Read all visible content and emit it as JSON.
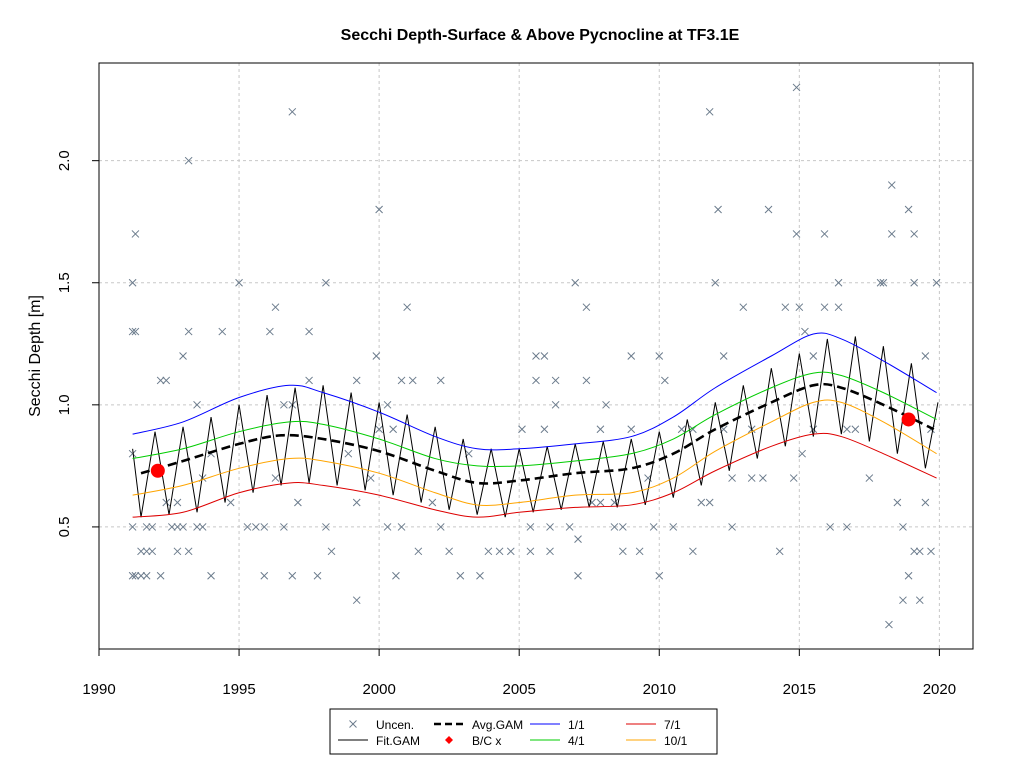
{
  "chart_data": {
    "type": "line",
    "title": "Secchi Depth-Surface & Above Pycnocline at TF3.1E",
    "y_label": "Secchi Depth [m]",
    "xlim": [
      1990,
      2021.2
    ],
    "ylim": [
      0,
      2.4
    ],
    "xticks": [
      1990,
      1995,
      2000,
      2005,
      2010,
      2015,
      2020
    ],
    "yticks": [
      0.5,
      {
        "value": 1.0,
        "label": "1.0"
      },
      1.5,
      {
        "value": 2.0,
        "label": "2.0"
      }
    ],
    "grid": true,
    "legend": "bottom",
    "series": [
      {
        "name": "Uncen.",
        "color": "#6b7b8c",
        "style": "x",
        "x": [
          1991.2,
          1991.2,
          1991.2,
          1991.2,
          1991.2,
          1991.3,
          1991.3,
          1991.3,
          1991.5,
          1991.5,
          1991.7,
          1991.7,
          1991.7,
          1991.9,
          1991.9,
          1992.2,
          1992.2,
          1992.4,
          1992.4,
          1992.6,
          1992.8,
          1992.8,
          1992.8,
          1993.0,
          1993.0,
          1993.2,
          1993.2,
          1993.2,
          1993.5,
          1993.5,
          1993.7,
          1993.7,
          1994.0,
          1994.0,
          1994.4,
          1994.7,
          1995.0,
          1995.3,
          1995.6,
          1995.9,
          1995.9,
          1996.1,
          1996.3,
          1996.3,
          1996.6,
          1996.6,
          1996.9,
          1996.9,
          1996.9,
          1997.1,
          1997.5,
          1997.5,
          1997.8,
          1998.1,
          1998.1,
          1998.3,
          1998.9,
          1999.2,
          1999.2,
          1999.2,
          1999.7,
          1999.9,
          2000.0,
          2000.0,
          2000.3,
          2000.3,
          2000.5,
          2000.6,
          2000.8,
          2000.8,
          2001.0,
          2001.2,
          2001.4,
          2001.9,
          2002.2,
          2002.2,
          2002.5,
          2002.9,
          2003.2,
          2003.6,
          2003.9,
          2004.3,
          2004.7,
          2005.1,
          2005.4,
          2005.4,
          2005.6,
          2005.6,
          2005.9,
          2005.9,
          2006.1,
          2006.1,
          2006.3,
          2006.3,
          2006.8,
          2007.0,
          2007.1,
          2007.1,
          2007.4,
          2007.4,
          2007.6,
          2007.9,
          2007.9,
          2008.1,
          2008.4,
          2008.4,
          2008.7,
          2008.7,
          2009.0,
          2009.0,
          2009.3,
          2009.6,
          2009.8,
          2010.0,
          2010.0,
          2010.2,
          2010.5,
          2010.8,
          2011.2,
          2011.2,
          2011.5,
          2011.8,
          2011.8,
          2012.0,
          2012.1,
          2012.3,
          2012.3,
          2012.6,
          2012.6,
          2013.0,
          2013.3,
          2013.3,
          2013.7,
          2013.9,
          2014.3,
          2014.5,
          2014.8,
          2014.9,
          2014.9,
          2015.0,
          2015.1,
          2015.2,
          2015.5,
          2015.5,
          2015.9,
          2015.9,
          2016.1,
          2016.4,
          2016.4,
          2016.7,
          2016.7,
          2017.0,
          2017.5,
          2017.9,
          2018.0,
          2018.2,
          2018.3,
          2018.3,
          2018.5,
          2018.7,
          2018.7,
          2018.9,
          2018.9,
          2019.1,
          2019.1,
          2019.1,
          2019.3,
          2019.3,
          2019.5,
          2019.5,
          2019.7,
          2019.7,
          2019.9
        ],
        "values": [
          1.5,
          1.3,
          0.8,
          0.5,
          0.3,
          1.7,
          1.3,
          0.3,
          0.4,
          0.3,
          0.5,
          0.4,
          0.3,
          0.5,
          0.4,
          1.1,
          0.3,
          1.1,
          0.6,
          0.5,
          0.5,
          0.4,
          0.6,
          1.2,
          0.5,
          2.0,
          1.3,
          0.4,
          1.0,
          0.5,
          0.7,
          0.5,
          0.3,
          0.8,
          1.3,
          0.6,
          1.5,
          0.5,
          0.5,
          0.3,
          0.5,
          1.3,
          1.4,
          0.7,
          1.0,
          0.5,
          2.2,
          0.3,
          1.0,
          0.6,
          1.3,
          1.1,
          0.3,
          1.5,
          0.5,
          0.4,
          0.8,
          1.1,
          0.2,
          0.6,
          0.7,
          1.2,
          1.8,
          0.9,
          1.0,
          0.5,
          0.9,
          0.3,
          1.1,
          0.5,
          1.4,
          1.1,
          0.4,
          0.6,
          1.1,
          0.5,
          0.4,
          0.3,
          0.8,
          0.3,
          0.4,
          0.4,
          0.4,
          0.9,
          0.4,
          0.5,
          1.2,
          1.1,
          1.2,
          0.9,
          0.4,
          0.5,
          1.1,
          1.0,
          0.5,
          1.5,
          0.45,
          0.3,
          1.4,
          1.1,
          0.6,
          0.9,
          0.6,
          1.0,
          0.5,
          0.6,
          0.5,
          0.4,
          1.2,
          0.9,
          0.4,
          0.7,
          0.5,
          1.2,
          0.3,
          1.1,
          0.5,
          0.9,
          0.4,
          0.9,
          0.6,
          2.2,
          0.6,
          1.5,
          1.8,
          1.2,
          0.9,
          0.5,
          0.7,
          1.4,
          0.9,
          0.7,
          0.7,
          1.8,
          0.4,
          1.4,
          0.7,
          2.3,
          1.7,
          1.4,
          0.8,
          1.3,
          1.2,
          0.9,
          1.7,
          1.4,
          0.5,
          1.5,
          1.4,
          0.5,
          0.9,
          0.9,
          0.7,
          1.5,
          1.5,
          0.1,
          1.9,
          1.7,
          0.6,
          0.5,
          0.2,
          0.3,
          1.8,
          1.7,
          1.5,
          0.4,
          0.2,
          0.4,
          0.6,
          1.2,
          0.4,
          0.9,
          1.5
        ]
      },
      {
        "name": "Fit.GAM",
        "color": "#000000",
        "style": "line",
        "width": 1,
        "x": [
          1991.2,
          1991.5,
          1992,
          1992.5,
          1993,
          1993.5,
          1994,
          1994.5,
          1995,
          1995.5,
          1996,
          1996.5,
          1997,
          1997.5,
          1998,
          1998.5,
          1999,
          1999.5,
          2000,
          2000.5,
          2001,
          2001.5,
          2002,
          2002.5,
          2003,
          2003.5,
          2004,
          2004.5,
          2005,
          2005.5,
          2006,
          2006.5,
          2007,
          2007.5,
          2008,
          2008.5,
          2009,
          2009.5,
          2010,
          2010.5,
          2011,
          2011.5,
          2012,
          2012.5,
          2013,
          2013.5,
          2014,
          2014.5,
          2015,
          2015.5,
          2016,
          2016.5,
          2017,
          2017.5,
          2018,
          2018.5,
          2019,
          2019.5,
          2019.95
        ],
        "values": [
          0.82,
          0.54,
          0.89,
          0.55,
          0.91,
          0.56,
          0.95,
          0.6,
          1.0,
          0.64,
          1.04,
          0.67,
          1.07,
          0.68,
          1.08,
          0.67,
          1.05,
          0.65,
          1.01,
          0.63,
          0.96,
          0.6,
          0.91,
          0.57,
          0.86,
          0.55,
          0.82,
          0.54,
          0.82,
          0.56,
          0.83,
          0.57,
          0.84,
          0.58,
          0.85,
          0.58,
          0.86,
          0.59,
          0.89,
          0.62,
          0.94,
          0.67,
          1.01,
          0.73,
          1.08,
          0.78,
          1.15,
          0.83,
          1.21,
          0.87,
          1.27,
          0.88,
          1.28,
          0.85,
          1.24,
          0.8,
          1.17,
          0.74,
          1.01
        ]
      },
      {
        "name": "Avg.GAM",
        "color": "#000000",
        "style": "dash",
        "width": 2.6,
        "x": [
          1991.5,
          1993,
          1995,
          1996.5,
          1998,
          2000,
          2002,
          2003.5,
          2005,
          2007,
          2009,
          2010.5,
          2012,
          2014,
          2015.5,
          2016.5,
          2018,
          2019.8
        ],
        "values": [
          0.72,
          0.77,
          0.84,
          0.875,
          0.86,
          0.81,
          0.73,
          0.68,
          0.69,
          0.72,
          0.74,
          0.8,
          0.9,
          1.01,
          1.08,
          1.07,
          1.0,
          0.9
        ]
      },
      {
        "name": "B/C x",
        "color": "#ff0000",
        "style": "dot",
        "x": [
          1992.1,
          2018.9
        ],
        "values": [
          0.73,
          0.94
        ]
      },
      {
        "name": "1/1",
        "color": "#0000ff",
        "style": "line",
        "width": 1,
        "x": [
          1991.2,
          1993,
          1995,
          1996.8,
          1998,
          2000,
          2002,
          2003.5,
          2005,
          2007,
          2009,
          2010.5,
          2012,
          2014,
          2015.5,
          2016.5,
          2018,
          2019.9
        ],
        "values": [
          0.88,
          0.93,
          1.03,
          1.08,
          1.05,
          0.97,
          0.87,
          0.82,
          0.82,
          0.84,
          0.87,
          0.95,
          1.07,
          1.2,
          1.29,
          1.27,
          1.18,
          1.05
        ]
      },
      {
        "name": "4/1",
        "color": "#00cc00",
        "style": "line",
        "width": 1,
        "x": [
          1991.2,
          1993,
          1995,
          1996.8,
          1998,
          2000,
          2002,
          2003.5,
          2005,
          2007,
          2009,
          2010.5,
          2012,
          2014,
          2015.5,
          2016.5,
          2018,
          2019.9
        ],
        "values": [
          0.78,
          0.82,
          0.89,
          0.93,
          0.92,
          0.86,
          0.78,
          0.75,
          0.75,
          0.77,
          0.8,
          0.86,
          0.96,
          1.07,
          1.13,
          1.12,
          1.05,
          0.94
        ]
      },
      {
        "name": "7/1",
        "color": "#dd0000",
        "style": "line",
        "width": 1,
        "x": [
          1991.2,
          1993,
          1995,
          1996.8,
          1998,
          2000,
          2002,
          2003.5,
          2005,
          2007,
          2009,
          2010.5,
          2012,
          2014,
          2015.5,
          2016.5,
          2018,
          2019.9
        ],
        "values": [
          0.54,
          0.56,
          0.64,
          0.68,
          0.67,
          0.63,
          0.57,
          0.54,
          0.56,
          0.58,
          0.59,
          0.64,
          0.73,
          0.83,
          0.88,
          0.87,
          0.8,
          0.7
        ]
      },
      {
        "name": "10/1",
        "color": "#ffa500",
        "style": "line",
        "width": 1,
        "x": [
          1991.2,
          1993,
          1995,
          1996.8,
          1998,
          2000,
          2002,
          2003.5,
          2005,
          2007,
          2009,
          2010.5,
          2012,
          2014,
          2015.5,
          2016.5,
          2018,
          2019.9
        ],
        "values": [
          0.63,
          0.67,
          0.74,
          0.78,
          0.77,
          0.72,
          0.64,
          0.59,
          0.6,
          0.63,
          0.64,
          0.7,
          0.81,
          0.93,
          1.01,
          1.01,
          0.93,
          0.8
        ]
      }
    ]
  }
}
